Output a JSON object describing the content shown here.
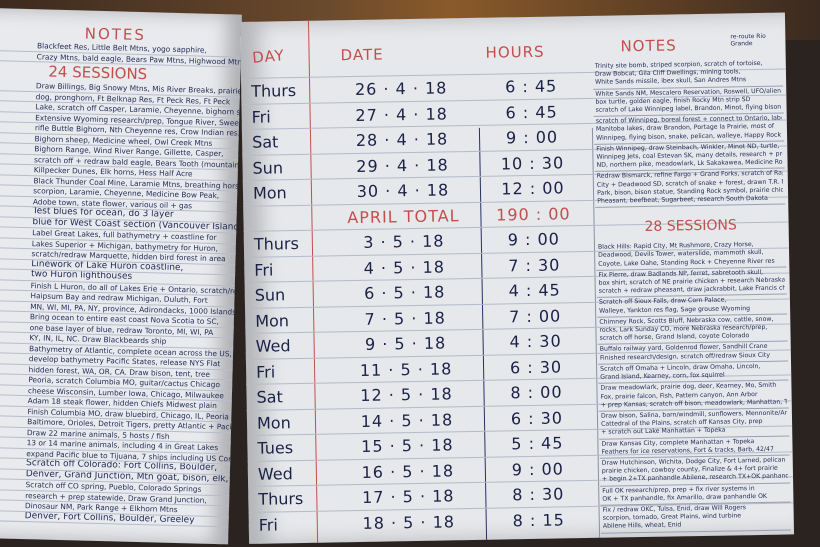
{
  "left_page": {
    "title": "NOTES",
    "top_lines": [
      "Blackfeet Res, Little Belt Mtns, yogo sapphire,",
      "Crazy Mtns, bald eagle, Bears Paw Mtns, Highwood Mtns"
    ],
    "sessions": "24 SESSIONS",
    "lines": [
      "Draw Billings, Big Snowy Mtns, Mis River Breaks, prairie",
      "dog, pronghorn, Ft Belknap Res, Ft Peck Res, Ft Peck",
      "Lake, scratch off Casper, Laramie, Cheyenne, bighorn sheep",
      "Extensive Wyoming research/prep, Tongue River, Sweetwater",
      "rifle Buttle Bighorn, Nth Cheyenne res, Crow Indian res,",
      "Bighorn sheep, Medicine wheel, Owl Creek Mtns",
      "Bighorn Range, Wind River Range, Gillette, Casper,",
      "scratch off + redraw bald eagle, Bears Tooth (mountain),",
      "Killpecker Dunes, Elk horns, Hess Half Acre",
      "Black Thunder Coal Mine, Laramie Mtns, breathing horsefly",
      "scorpion, Laramie, Cheyenne, Medicine Bow Peak,",
      "Adobe town, state flower, various oil + gas",
      "Test blues for ocean, do 3 layer",
      "blue for West Coast section (Vancouver Island to SoCal)",
      "Label Great Lakes, full bathymetry + coastline for",
      "Lakes Superior + Michigan, bathymetry for Huron,",
      "scratch/redraw Marquette, hidden bird forest in area",
      "Linework of Lake Huron coastline,",
      "two Huron lighthouses",
      "Finish L Huron, do all of Lakes Erie + Ontario, scratch/redraw",
      "Haipsum Bay and redraw Michigan, Duluth, Fort",
      "MN, WI, MI, PA, NY, province, Adirondacks, 1000 Islands",
      "Bring ocean to entire east coast Nova Scotia to SC,",
      "one base layer of blue, redraw Toronto, MI, WI, PA",
      "KY, IN, IL, NC. Draw Blackbeards ship",
      "Bathymetry of Atlantic, complete ocean across the US,",
      "develop bathymetry Pacific States, release NYS Flat",
      "hidden forest, WA, OR, CA. Draw bison, tent, tree",
      "Peoria, scratch Columbia MO, guitar/cactus Chicago",
      "cheese Wisconsin, Lumber Iowa, Chicago, Milwaukee",
      "Adam 18 steak flower, hidden Chiefs Midwest plain",
      "Finish Columbia MO, draw bluebird, Chicago, IL, Peoria",
      "Baltimore, Orioles, Detroit Tigers, pretty Atlantic + Pacific",
      "Draw 22 marine animals, 5 hosts / fish",
      "13 or 14 marine animals, including 4 in Great Lakes",
      "expand Pacific blue to Tijuana, 7 ships including US Constitution",
      "Scratch off Colorado: Fort Collins, Boulder,",
      "Denver, Grand Junction, Mtn goat, bison, elk,",
      "Scratch off CO spring, Pueblo, Colorado Springs",
      "research + prep statewide, Draw Grand Junction,",
      "Dinosaur NM, Park Range + Elkhorn Mtns",
      "Denver, Fort Collins, Boulder, Greeley"
    ]
  },
  "table": {
    "headers": {
      "day": "DAY",
      "date": "DATE",
      "hours": "HOURS",
      "notes": "NOTES"
    },
    "notes_annotation": "re-route Rio Grande",
    "rows": [
      {
        "day": "Thurs",
        "date": "26 · 4 · 18",
        "hours": "6 : 45"
      },
      {
        "day": "Fri",
        "date": "27 · 4 · 18",
        "hours": "6 : 45"
      },
      {
        "day": "Sat",
        "date": "28 · 4 · 18",
        "hours": "9 : 00"
      },
      {
        "day": "Sun",
        "date": "29 · 4 · 18",
        "hours": "10 : 30"
      },
      {
        "day": "Mon",
        "date": "30 · 4 · 18",
        "hours": "12 : 00"
      },
      {
        "day": "",
        "date": "APRIL TOTAL",
        "hours": "190 : 00",
        "total": true
      },
      {
        "day": "Thurs",
        "date": "3 · 5 · 18",
        "hours": "9 : 00"
      },
      {
        "day": "Fri",
        "date": "4 · 5 · 18",
        "hours": "7 : 30"
      },
      {
        "day": "Sun",
        "date": "6 · 5 · 18",
        "hours": "4 : 45"
      },
      {
        "day": "Mon",
        "date": "7 · 5 · 18",
        "hours": "7 : 00"
      },
      {
        "day": "Wed",
        "date": "9 · 5 · 18",
        "hours": "4 : 30"
      },
      {
        "day": "Fri",
        "date": "11 · 5 · 18",
        "hours": "6 : 30"
      },
      {
        "day": "Sat",
        "date": "12 · 5 · 18",
        "hours": "8 : 00"
      },
      {
        "day": "Mon",
        "date": "14 · 5 · 18",
        "hours": "6 : 30"
      },
      {
        "day": "Tues",
        "date": "15 · 5 · 18",
        "hours": "5 : 45"
      },
      {
        "day": "Wed",
        "date": "16 · 5 · 18",
        "hours": "9 : 00"
      },
      {
        "day": "Thurs",
        "date": "17 · 5 · 18",
        "hours": "8 : 30"
      },
      {
        "day": "Fri",
        "date": "18 · 5 · 18",
        "hours": "8 : 15"
      }
    ]
  },
  "right_notes": {
    "blocks_top": [
      [
        "Trinity site bomb, striped scorpion, scratch of tortoise,",
        "Draw Bobcat, Gila Cliff Dwellings, mining tools,",
        "White Sands missile, ibex skull, San Andres Mtns"
      ],
      [
        "White Sands NM, Mescalero Reservation, Roswell, UFO/aliens",
        "box turtle, golden eagle, finish Rocky Mtn strip SD",
        "scratch of Lake Winnipeg label, Brandon, Minot, flying bison"
      ],
      [
        "scratch of Winnipeg, boreal forest + connect to Ontario, label",
        "Manitoba lakes, draw Brandon, Portage la Prairie, most of",
        "Winnipeg, flying bison, snake, pelican, walleye, Happy Rock"
      ],
      [
        "Finish Winnipeg, draw Steinbach, Winkler, Minot ND, turtle,",
        "Winnipeg Jets, coal Estevan SK, many details, research + prep for",
        "ND, northern pike, meadowlark, Lk Sakakawea, Medicine Rocks"
      ],
      [
        "Redraw Bismarck, refine Fargo + Grand Forks, scratch of Rapid",
        "City + Deadwood SD, scratch of snake + forest, drawn T.R. National",
        "Park, bison, bison statue, Standing Rock symbol, prairie chicken,",
        "Pheasant, beefbeat, Sugarbeet, research South Dakota"
      ]
    ],
    "sessions": "28 SESSIONS",
    "blocks_bottom": [
      [
        "Black Hills: Rapid City, Mt Rushmore, Crazy Horse,",
        "Deadwood, Devils Tower, waterslide, mammoth skull,",
        "Coyote, Lake Oahe, Standing Rock + Cheyenne River res"
      ],
      [
        "Fix Pierre, draw Badlands NP, ferret, sabretooth skull,",
        "box shirt, scratch of NE prairie chicken + research Nebraska",
        "scratch + redraw pheasant, draw jackrabbit, Lake Francis chase"
      ],
      [
        "Scratch off Sioux Falls, draw Corn Palace,",
        "Walleye, Yankton res flag, Sage grouse Wyoming"
      ],
      [
        "Chimney Rock, Scotts Bluff, Nebraska cow, cattle, snow,",
        "rocks, Lark Sunday CO, more Nebraska research/prep,",
        "scratch off horse, Grand Island, coyote Colorado"
      ],
      [
        "Buffalo railway yard, Goldenrod flower, Sandhill Crane",
        "Finished research/design, scratch off/redraw Sioux City"
      ],
      [
        "Scratch off Omaha + Lincoln, draw Omaha, Lincoln,",
        "Grand Island, Kearney, corn, fox squirrel"
      ],
      [
        "Draw meadowlark, prairie dog, deer, Kearney, Mo, Smith",
        "Fox, prairie falcon, Fish, Pattern canyon, Ann Arbor",
        "+ prep Kansas, scratch off bison, meadowlark, Manhattan, Topeka"
      ],
      [
        "Draw bison, Salina, barn/windmill, sunflowers, Mennonite/Amish",
        "Cattedral of the Plains, scratch off Kansas City, prep",
        "+ scratch out Lake Manhattan + Topeka"
      ],
      [
        "Draw Kansas City, complete Manhattan + Topeka",
        "Feathers for ice reservations, Fort & tracks, Barb, 42/47"
      ],
      [
        "Draw Hutchinson, Wichita, Dodge City, Fort Larned, pelican",
        "prairie chicken, cowboy county, Finalize & 4+ fort prairie",
        "+ begin 2+TX panhandle Abilene, research TX+OK panhandle"
      ],
      [
        "Full OK research/prep, prep + fix river systems in",
        "OK + TX panhandle, fix Amarillo, draw panhandle OK"
      ],
      [
        "Fix / redraw OKC, Tulsa, Enid, draw Will Rogers",
        "scorpion, tornado, Great Plains, wind turbine",
        "Abilene Hills, wheat, Enid"
      ]
    ]
  }
}
